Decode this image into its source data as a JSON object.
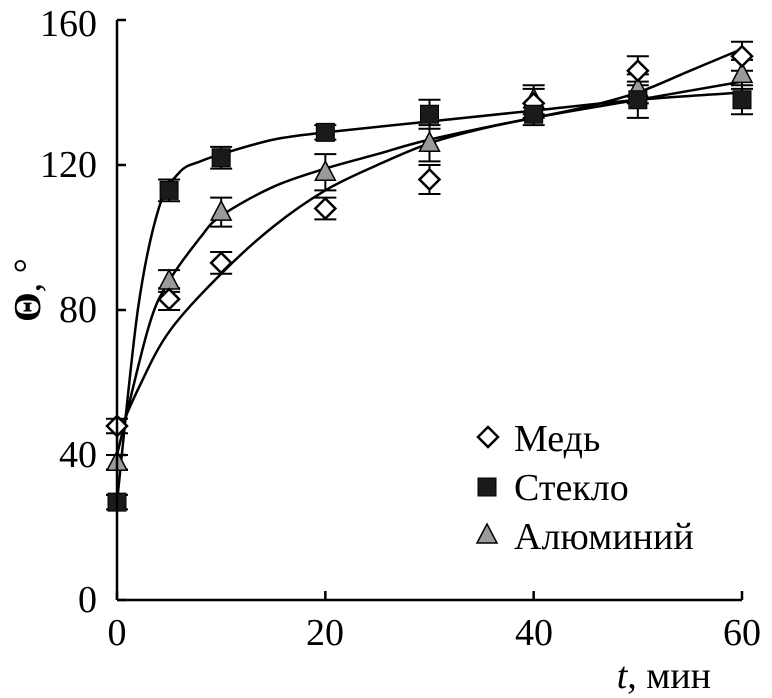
{
  "chart_data": {
    "type": "scatter",
    "title": "",
    "xlabel_var": "t",
    "xlabel_unit": ", мин",
    "ylabel_var": "Θ",
    "ylabel_unit": ", °",
    "xlim": [
      0,
      60
    ],
    "ylim": [
      0,
      160
    ],
    "x_ticks": [
      0,
      20,
      40,
      60
    ],
    "y_ticks": [
      0,
      40,
      80,
      120,
      160
    ],
    "grid": false,
    "legend_position": "bottom-right",
    "colors": {
      "axis": "#000000",
      "copper_fill": "#ffffff",
      "glass_fill": "#1a1a1a",
      "aluminum_fill": "#9a9a9a",
      "curve": "#000000"
    },
    "series": [
      {
        "name": "Медь",
        "marker": "diamond",
        "x": [
          0,
          5,
          10,
          20,
          30,
          40,
          50,
          60
        ],
        "values": [
          48,
          83,
          93,
          108,
          116,
          137,
          146,
          150
        ],
        "errors": [
          2,
          3,
          3,
          3,
          4,
          4,
          4,
          4
        ],
        "fit": [
          [
            0,
            45
          ],
          [
            2,
            58
          ],
          [
            5,
            74
          ],
          [
            10,
            90
          ],
          [
            15,
            103
          ],
          [
            20,
            113
          ],
          [
            25,
            120
          ],
          [
            30,
            126
          ],
          [
            35,
            130
          ],
          [
            40,
            133
          ],
          [
            45,
            136
          ],
          [
            50,
            140
          ],
          [
            55,
            146
          ],
          [
            60,
            152
          ]
        ]
      },
      {
        "name": "Стекло",
        "marker": "square",
        "x": [
          0,
          5,
          10,
          20,
          30,
          40,
          50,
          60
        ],
        "values": [
          27,
          113,
          122,
          129,
          134,
          134,
          138,
          138
        ],
        "errors": [
          2,
          3,
          3,
          2,
          4,
          3,
          5,
          4
        ],
        "fit": [
          [
            0,
            27
          ],
          [
            2,
            80
          ],
          [
            4,
            108
          ],
          [
            6,
            118
          ],
          [
            8,
            121
          ],
          [
            10,
            123
          ],
          [
            15,
            127
          ],
          [
            20,
            129
          ],
          [
            30,
            132
          ],
          [
            40,
            135
          ],
          [
            50,
            138
          ],
          [
            60,
            140
          ]
        ]
      },
      {
        "name": "Алюминий",
        "marker": "triangle",
        "x": [
          0,
          5,
          10,
          20,
          30,
          40,
          50,
          60
        ],
        "values": [
          38,
          88,
          107,
          118,
          126,
          138,
          141,
          145
        ],
        "errors": [
          2,
          3,
          4,
          5,
          5,
          4,
          4,
          4
        ],
        "fit": [
          [
            0,
            40
          ],
          [
            3,
            75
          ],
          [
            5,
            88
          ],
          [
            8,
            100
          ],
          [
            10,
            106
          ],
          [
            15,
            114
          ],
          [
            20,
            119
          ],
          [
            25,
            123
          ],
          [
            30,
            127
          ],
          [
            40,
            133
          ],
          [
            50,
            138
          ],
          [
            60,
            143
          ]
        ]
      }
    ]
  }
}
